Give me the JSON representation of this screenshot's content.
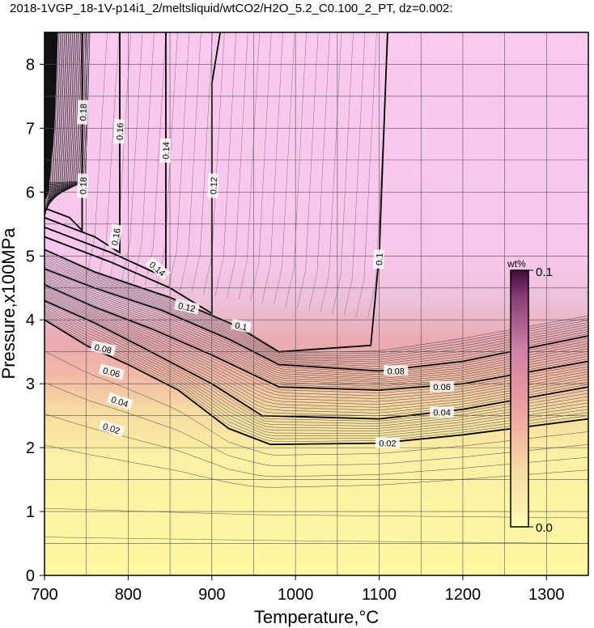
{
  "chart_data": {
    "type": "heatmap",
    "title": "2018-1VGP_18-1V-p14i1_2/meltsliquid/wtCO2/H2O_5.2_C0.100_2_PT, dz=0.002:",
    "xlabel": "Temperature,°C",
    "ylabel": "Pressure,x100MPa",
    "xlim": [
      700,
      1350
    ],
    "ylim": [
      0,
      8.5
    ],
    "x_ticks": [
      700,
      800,
      900,
      1000,
      1100,
      1200,
      1300
    ],
    "y_ticks": [
      0,
      1,
      2,
      3,
      4,
      5,
      6,
      7,
      8
    ],
    "grid": true,
    "colorbar": {
      "unit": "wt%",
      "min": 0.0,
      "max": 0.1,
      "min_label": "0.0",
      "max_label": "0.1",
      "placement": "right-inside",
      "colors": [
        "#fff7a8",
        "#f3d5a0",
        "#e9a7a3",
        "#d98fb0",
        "#5c1e4a"
      ]
    },
    "fill_colors": {
      "low": "#fdf7a3",
      "mid": "#f1b6a3",
      "high": "#f9c8ee"
    },
    "contours": [
      {
        "level": 0.02,
        "label": "0.02",
        "points": [
          [
            700,
            4.0
          ],
          [
            750,
            3.6
          ],
          [
            800,
            3.3
          ],
          [
            860,
            2.9
          ],
          [
            920,
            2.3
          ],
          [
            970,
            2.05
          ],
          [
            1100,
            2.07
          ],
          [
            1200,
            2.2
          ],
          [
            1350,
            2.45
          ]
        ]
      },
      {
        "level": 0.04,
        "label": "0.04",
        "points": [
          [
            700,
            4.3
          ],
          [
            760,
            3.95
          ],
          [
            820,
            3.55
          ],
          [
            900,
            3.0
          ],
          [
            960,
            2.5
          ],
          [
            1100,
            2.45
          ],
          [
            1200,
            2.6
          ],
          [
            1350,
            2.95
          ]
        ]
      },
      {
        "level": 0.06,
        "label": "0.06",
        "points": [
          [
            700,
            4.55
          ],
          [
            760,
            4.2
          ],
          [
            830,
            3.85
          ],
          [
            900,
            3.45
          ],
          [
            980,
            2.95
          ],
          [
            1100,
            2.9
          ],
          [
            1200,
            3.0
          ],
          [
            1350,
            3.35
          ]
        ]
      },
      {
        "level": 0.08,
        "label": "0.08",
        "points": [
          [
            700,
            4.8
          ],
          [
            760,
            4.5
          ],
          [
            840,
            4.15
          ],
          [
            920,
            3.7
          ],
          [
            980,
            3.3
          ],
          [
            1100,
            3.2
          ],
          [
            1200,
            3.35
          ],
          [
            1350,
            3.75
          ]
        ]
      },
      {
        "level": 0.1,
        "label": "0.1",
        "points": [
          [
            700,
            5.1
          ],
          [
            760,
            4.75
          ],
          [
            850,
            4.35
          ],
          [
            930,
            3.9
          ],
          [
            980,
            3.5
          ],
          [
            1090,
            3.6
          ],
          [
            1100,
            5.0
          ],
          [
            1110,
            8.5
          ]
        ]
      },
      {
        "level": 0.12,
        "label": "0.12",
        "points": [
          [
            700,
            5.3
          ],
          [
            780,
            4.9
          ],
          [
            850,
            4.5
          ],
          [
            900,
            4.1
          ],
          [
            900,
            7.7
          ],
          [
            910,
            8.5
          ]
        ]
      },
      {
        "level": 0.14,
        "label": "0.14",
        "points": [
          [
            700,
            5.45
          ],
          [
            780,
            5.05
          ],
          [
            830,
            4.75
          ],
          [
            845,
            4.7
          ],
          [
            845,
            8.5
          ]
        ]
      },
      {
        "level": 0.16,
        "label": "0.16",
        "points": [
          [
            700,
            5.6
          ],
          [
            760,
            5.3
          ],
          [
            790,
            5.05
          ],
          [
            790,
            8.5
          ]
        ]
      },
      {
        "level": 0.18,
        "label": "0.18",
        "points": [
          [
            700,
            5.75
          ],
          [
            730,
            5.6
          ],
          [
            745,
            5.4
          ],
          [
            745,
            8.5
          ]
        ]
      }
    ]
  }
}
